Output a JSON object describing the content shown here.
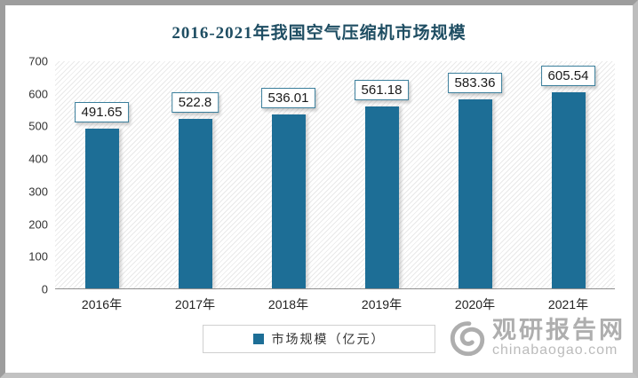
{
  "title": {
    "text": "2016-2021年我国空气压缩机市场规模"
  },
  "chart_data": {
    "type": "bar",
    "title": "2016-2021年我国空气压缩机市场规模",
    "categories": [
      "2016年",
      "2017年",
      "2018年",
      "2019年",
      "2020年",
      "2021年"
    ],
    "values": [
      491.65,
      522.8,
      536.01,
      561.18,
      583.36,
      605.54
    ],
    "value_labels": [
      "491.65",
      "522.8",
      "536.01",
      "561.18",
      "583.36",
      "605.54"
    ],
    "series_name": "市场规模（亿元）",
    "xlabel": "",
    "ylabel": "",
    "ylim": [
      0,
      700
    ],
    "yticks": [
      0,
      100,
      200,
      300,
      400,
      500,
      600,
      700
    ],
    "grid": false,
    "legend_position": "bottom",
    "bar_color": "#1d6e96"
  },
  "legend": {
    "label": "市场规模（亿元）"
  },
  "watermark": {
    "site_name": "观研报告网",
    "site_domain": "chinabaogao.com"
  },
  "colors": {
    "bar": "#1d6e96",
    "title_text": "#1f4e63",
    "value_box_border": "#3a7e9b",
    "watermark_gray": "#9a9a9a"
  }
}
